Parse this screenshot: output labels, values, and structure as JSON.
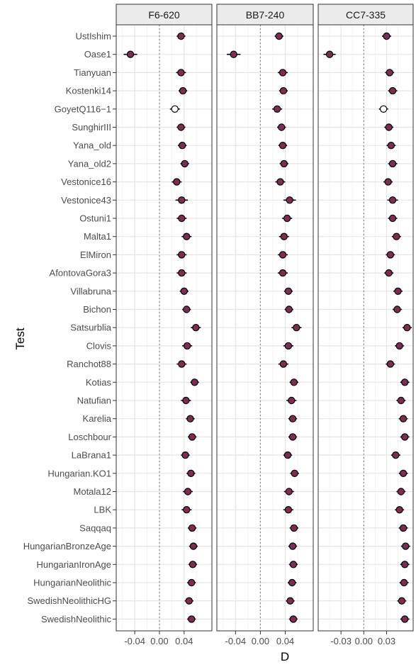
{
  "chart_data": {
    "type": "scatter",
    "subtype": "dot-with-error-bars, faceted",
    "ylabel": "Test",
    "xlabel": "D",
    "grid": true,
    "reference_line": 0,
    "point_fill_color": "#7b2d52",
    "nonsignificant_fill_color": "#ffffff",
    "categories": [
      "UstIshim",
      "Oase1",
      "Tianyuan",
      "Kostenki14",
      "GoyetQ116−1",
      "SunghirIII",
      "Yana_old",
      "Yana_old2",
      "Vestonice16",
      "Vestonice43",
      "Ostuni1",
      "Malta1",
      "ElMiron",
      "AfontovaGora3",
      "Villabruna",
      "Bichon",
      "Satsurblia",
      "Clovis",
      "Ranchot88",
      "Kotias",
      "Natufian",
      "Karelia",
      "Loschbour",
      "LaBrana1",
      "Hungarian.KO1",
      "Motala12",
      "LBK",
      "Saqqaq",
      "HungarianBronzeAge",
      "HungarianIronAge",
      "HungarianNeolithic",
      "SwedishNeolithicHG",
      "SwedishNeolithic"
    ],
    "facets": [
      {
        "name": "F6-620",
        "xlim": [
          -0.07,
          0.085
        ],
        "xticks": [
          -0.04,
          0.0,
          0.04
        ],
        "xtick_labels": [
          "-0.04",
          "0.00",
          "0.04"
        ],
        "values": [
          0.035,
          -0.047,
          0.035,
          0.038,
          0.025,
          0.035,
          0.037,
          0.041,
          0.028,
          0.036,
          0.036,
          0.044,
          0.036,
          0.036,
          0.04,
          0.044,
          0.059,
          0.045,
          0.036,
          0.057,
          0.043,
          0.05,
          0.053,
          0.042,
          0.051,
          0.046,
          0.044,
          0.053,
          0.055,
          0.054,
          0.052,
          0.048,
          0.052
        ],
        "errors": [
          0.007,
          0.011,
          0.008,
          0.007,
          0.008,
          0.007,
          0.007,
          0.007,
          0.008,
          0.01,
          0.008,
          0.008,
          0.008,
          0.008,
          0.007,
          0.007,
          0.008,
          0.008,
          0.008,
          0.007,
          0.008,
          0.007,
          0.007,
          0.007,
          0.007,
          0.008,
          0.008,
          0.007,
          0.007,
          0.007,
          0.007,
          0.007,
          0.007
        ],
        "significant": [
          true,
          true,
          true,
          true,
          false,
          true,
          true,
          true,
          true,
          true,
          true,
          true,
          true,
          true,
          true,
          true,
          true,
          true,
          true,
          true,
          true,
          true,
          true,
          true,
          true,
          true,
          true,
          true,
          true,
          true,
          true,
          true,
          true
        ]
      },
      {
        "name": "BB7-240",
        "xlim": [
          -0.07,
          0.085
        ],
        "xticks": [
          -0.04,
          0.0,
          0.04
        ],
        "xtick_labels": [
          "-0.04",
          "0.00",
          "0.04"
        ],
        "values": [
          0.03,
          -0.043,
          0.036,
          0.037,
          0.027,
          0.034,
          0.036,
          0.038,
          0.032,
          0.047,
          0.043,
          0.038,
          0.036,
          0.036,
          0.045,
          0.046,
          0.058,
          0.045,
          0.037,
          0.054,
          0.05,
          0.052,
          0.052,
          0.044,
          0.055,
          0.046,
          0.045,
          0.054,
          0.052,
          0.053,
          0.051,
          0.048,
          0.053
        ],
        "errors": [
          0.007,
          0.011,
          0.008,
          0.007,
          0.008,
          0.007,
          0.007,
          0.007,
          0.008,
          0.01,
          0.008,
          0.008,
          0.008,
          0.008,
          0.007,
          0.007,
          0.008,
          0.008,
          0.008,
          0.007,
          0.008,
          0.007,
          0.007,
          0.007,
          0.007,
          0.008,
          0.008,
          0.007,
          0.007,
          0.007,
          0.007,
          0.007,
          0.007
        ],
        "significant": [
          true,
          true,
          true,
          true,
          true,
          true,
          true,
          true,
          true,
          true,
          true,
          true,
          true,
          true,
          true,
          true,
          true,
          true,
          true,
          true,
          true,
          true,
          true,
          true,
          true,
          true,
          true,
          true,
          true,
          true,
          true,
          true,
          true
        ]
      },
      {
        "name": "CC7-335",
        "xlim": [
          -0.06,
          0.065
        ],
        "xticks": [
          -0.03,
          0.0,
          0.03
        ],
        "xtick_labels": [
          "-0.03",
          "0.00",
          "0.03"
        ],
        "values": [
          0.03,
          -0.045,
          0.034,
          0.038,
          0.026,
          0.033,
          0.036,
          0.038,
          0.032,
          0.038,
          0.038,
          0.043,
          0.035,
          0.033,
          0.045,
          0.044,
          0.057,
          0.047,
          0.035,
          0.054,
          0.049,
          0.052,
          0.054,
          0.042,
          0.052,
          0.049,
          0.047,
          0.052,
          0.055,
          0.054,
          0.053,
          0.05,
          0.054
        ],
        "errors": [
          0.006,
          0.008,
          0.006,
          0.006,
          0.006,
          0.006,
          0.006,
          0.006,
          0.006,
          0.007,
          0.006,
          0.006,
          0.006,
          0.006,
          0.006,
          0.006,
          0.006,
          0.006,
          0.006,
          0.006,
          0.006,
          0.006,
          0.006,
          0.006,
          0.006,
          0.006,
          0.006,
          0.006,
          0.006,
          0.006,
          0.006,
          0.006,
          0.006
        ],
        "significant": [
          true,
          true,
          true,
          true,
          false,
          true,
          true,
          true,
          true,
          true,
          true,
          true,
          true,
          true,
          true,
          true,
          true,
          true,
          true,
          true,
          true,
          true,
          true,
          true,
          true,
          true,
          true,
          true,
          true,
          true,
          true,
          true,
          true
        ]
      }
    ]
  }
}
